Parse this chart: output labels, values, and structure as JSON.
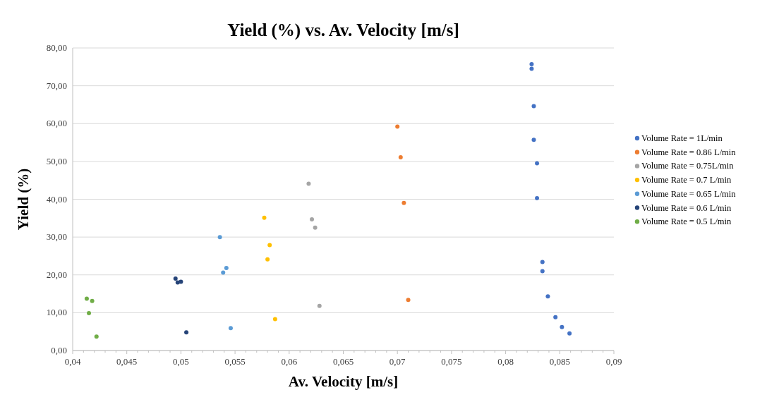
{
  "chart_data": {
    "type": "scatter",
    "title": "Yield (%) vs. Av. Velocity [m/s]",
    "xlabel": "Av. Velocity [m/s]",
    "ylabel": "Yield (%)",
    "xlim": [
      0.04,
      0.09
    ],
    "ylim": [
      0,
      80
    ],
    "xticks": [
      {
        "value": 0.04,
        "label": "0,04"
      },
      {
        "value": 0.045,
        "label": "0,045"
      },
      {
        "value": 0.05,
        "label": "0,05"
      },
      {
        "value": 0.055,
        "label": "0,055"
      },
      {
        "value": 0.06,
        "label": "0,06"
      },
      {
        "value": 0.065,
        "label": "0,065"
      },
      {
        "value": 0.07,
        "label": "0,07"
      },
      {
        "value": 0.075,
        "label": "0,075"
      },
      {
        "value": 0.08,
        "label": "0,08"
      },
      {
        "value": 0.085,
        "label": "0,085"
      },
      {
        "value": 0.09,
        "label": "0,09"
      }
    ],
    "yticks": [
      {
        "value": 0,
        "label": "0,00"
      },
      {
        "value": 10,
        "label": "10,00"
      },
      {
        "value": 20,
        "label": "20,00"
      },
      {
        "value": 30,
        "label": "30,00"
      },
      {
        "value": 40,
        "label": "40,00"
      },
      {
        "value": 50,
        "label": "50,00"
      },
      {
        "value": 60,
        "label": "60,00"
      },
      {
        "value": 70,
        "label": "70,00"
      },
      {
        "value": 80,
        "label": "80,00"
      }
    ],
    "grid": "y",
    "legend": "right",
    "marker": "circle",
    "series": [
      {
        "name": "Volume Rate = 1L/min",
        "color": "#4472c4",
        "x": [
          0.0824,
          0.0824,
          0.0826,
          0.0826,
          0.0829,
          0.0829,
          0.0834,
          0.0834,
          0.0839,
          0.0846,
          0.0852,
          0.0859
        ],
        "values": [
          75.7,
          74.5,
          64.6,
          55.7,
          49.5,
          40.3,
          23.4,
          21.0,
          14.3,
          8.8,
          6.2,
          4.5
        ]
      },
      {
        "name": "Volume Rate = 0.86 L/min",
        "color": "#ed7d31",
        "x": [
          0.07,
          0.0703,
          0.0706,
          0.071
        ],
        "values": [
          59.2,
          51.1,
          39.0,
          13.4
        ]
      },
      {
        "name": "Volume Rate = 0.75L/min",
        "color": "#a5a5a5",
        "x": [
          0.0618,
          0.0621,
          0.0624,
          0.0628
        ],
        "values": [
          44.1,
          34.7,
          32.5,
          11.8
        ]
      },
      {
        "name": "Volume Rate = 0.7 L/min",
        "color": "#ffc000",
        "x": [
          0.0577,
          0.0582,
          0.058,
          0.0587
        ],
        "values": [
          35.1,
          27.9,
          24.1,
          8.3
        ]
      },
      {
        "name": "Volume Rate = 0.65 L/min",
        "color": "#5b9bd5",
        "x": [
          0.0536,
          0.0542,
          0.0539,
          0.0546
        ],
        "values": [
          30.0,
          21.8,
          20.6,
          5.9
        ]
      },
      {
        "name": "Volume Rate = 0.6 L/min",
        "color": "#264478",
        "x": [
          0.0495,
          0.0497,
          0.05,
          0.0505
        ],
        "values": [
          19.0,
          18.0,
          18.2,
          4.8
        ]
      },
      {
        "name": "Volume Rate = 0.5 L/min",
        "color": "#70ad47",
        "x": [
          0.0413,
          0.0418,
          0.0415,
          0.0422
        ],
        "values": [
          13.7,
          13.1,
          9.9,
          3.7
        ]
      }
    ]
  }
}
